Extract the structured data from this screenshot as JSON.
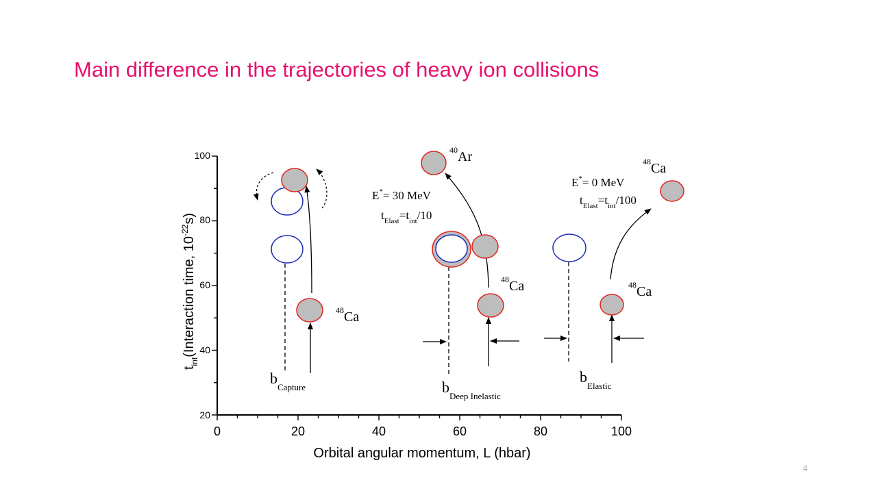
{
  "slide": {
    "title": "Main difference in the trajectories of heavy ion collisions",
    "page_number": "4"
  },
  "figure": {
    "xlabel": "Orbital angular momentum, L (hbar)",
    "ylabel_main": "t",
    "ylabel_sub": "int",
    "ylabel_rest": "(Interaction time, 10",
    "ylabel_exp": "-22",
    "ylabel_end": "s)",
    "xlim": [
      0,
      100
    ],
    "ylim": [
      20,
      100
    ],
    "xticks": [
      0,
      20,
      40,
      60,
      80,
      100
    ],
    "yticks": [
      20,
      40,
      60,
      80,
      100
    ],
    "colors": {
      "nucleus_edge": "#e0261f",
      "nucleus_fill": "#bdbdbd",
      "projectile_edge": "#1f2fb8"
    },
    "regions": [
      {
        "name": "Capture",
        "b_label": "b",
        "b_sub": "Capture",
        "nucleus_label": "Ca",
        "nucleus_mass": "48"
      },
      {
        "name": "Deep Inelastic",
        "b_label": "b",
        "b_sub": "Deep Inelastic",
        "nucleus_label": "Ca",
        "nucleus_mass": "48",
        "product_label": "Ar",
        "product_mass": "40",
        "energy_prefix": "E",
        "energy_sup": "*",
        "energy_text": "= 30 MeV",
        "time_t1": "t",
        "time_s1": "Elast",
        "time_mid": "=t",
        "time_s2": "int",
        "time_end": "/10"
      },
      {
        "name": "Elastic",
        "b_label": "b",
        "b_sub": "Elastic",
        "nucleus_label": "Ca",
        "nucleus_mass": "48",
        "product_label": "Ca",
        "product_mass": "48",
        "energy_prefix": "E",
        "energy_sup": "*",
        "energy_text": "= 0 MeV",
        "time_t1": "t",
        "time_s1": "Elast",
        "time_mid": "=t",
        "time_s2": "int",
        "time_end": "/100"
      }
    ]
  }
}
